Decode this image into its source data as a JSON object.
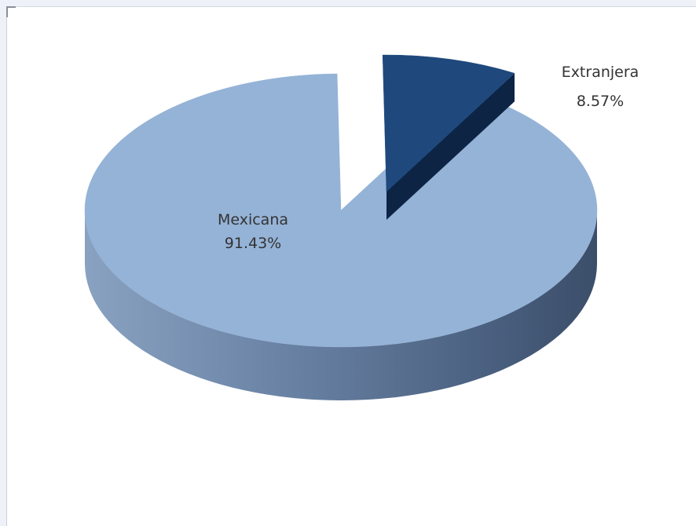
{
  "chart_data": {
    "type": "pie",
    "title": "",
    "slices": [
      {
        "label": "Mexicana",
        "value": 91.43,
        "value_label": "91.43%",
        "color": "#95b3d7"
      },
      {
        "label": "Extranjera",
        "value": 8.57,
        "value_label": "8.57%",
        "color": "#1f497d"
      }
    ],
    "style": "3d-exploded",
    "legend": "none"
  }
}
